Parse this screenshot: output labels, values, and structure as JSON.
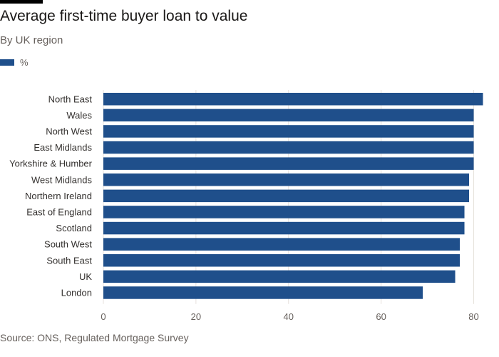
{
  "colors": {
    "bar": "#1f4f8b",
    "grid": "#e6e1dc",
    "text": "#33302e",
    "axis_text": "#66605c"
  },
  "footer": {
    "source": "Source: ONS, Regulated Mortgage Survey"
  },
  "chart_data": {
    "type": "bar",
    "orientation": "horizontal",
    "title": "Average first-time buyer loan to value",
    "subtitle": "By UK region",
    "legend_position": "top-left",
    "grid": true,
    "xlim": [
      0,
      83
    ],
    "xticks": [
      0,
      20,
      40,
      60,
      80
    ],
    "categories": [
      "North East",
      "Wales",
      "North West",
      "East Midlands",
      "Yorkshire & Humber",
      "West Midlands",
      "Northern Ireland",
      "East of England",
      "Scotland",
      "South West",
      "South East",
      "UK",
      "London"
    ],
    "series": [
      {
        "name": "%",
        "values": [
          82,
          80,
          80,
          80,
          80,
          79,
          79,
          78,
          78,
          77,
          77,
          76,
          69
        ]
      }
    ]
  }
}
